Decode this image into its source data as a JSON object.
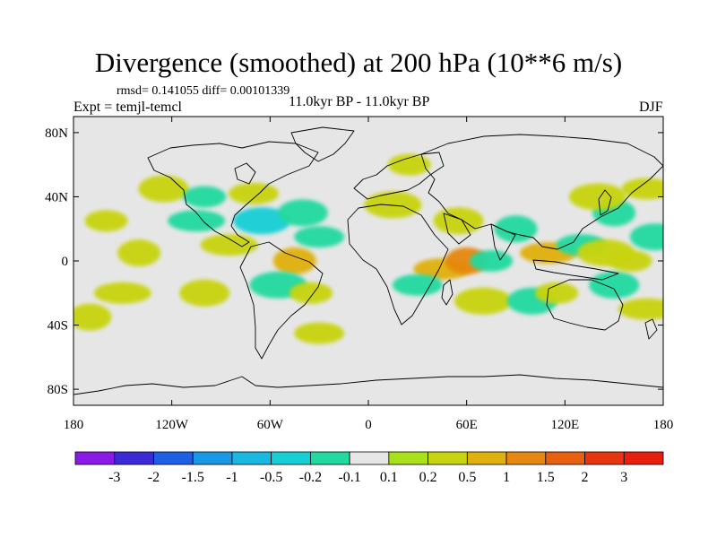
{
  "title": "Divergence (smoothed) at 200 hPa (10**6 m/s)",
  "stats": "rmsd= 0.141055 diff= 0.00101339",
  "experiment": "Expt = temjl-temcl",
  "period": "11.0kyr BP - 11.0kyr BP",
  "season": "DJF",
  "map": {
    "lat_ticks": [
      {
        "label": "80N",
        "value": 80
      },
      {
        "label": "40N",
        "value": 40
      },
      {
        "label": "0",
        "value": 0
      },
      {
        "label": "40S",
        "value": -40
      },
      {
        "label": "80S",
        "value": -80
      }
    ],
    "lon_ticks": [
      {
        "label": "180",
        "value": -180
      },
      {
        "label": "120W",
        "value": -120
      },
      {
        "label": "60W",
        "value": -60
      },
      {
        "label": "0",
        "value": 0
      },
      {
        "label": "60E",
        "value": 60
      },
      {
        "label": "120E",
        "value": 120
      },
      {
        "label": "180",
        "value": 180
      }
    ],
    "background_color": "#e6e6e6"
  },
  "colorbar": {
    "levels": [
      "-3",
      "-2",
      "-1.5",
      "-1",
      "-0.5",
      "-0.2",
      "-0.1",
      "0.1",
      "0.2",
      "0.5",
      "1",
      "1.5",
      "2",
      "3"
    ],
    "colors": [
      "#8a1ae6",
      "#3c2ad6",
      "#1f5fe6",
      "#1a98e6",
      "#18b8e0",
      "#18cfd6",
      "#22d9a0",
      "#e6e6e6",
      "#a8e01a",
      "#c8d40f",
      "#e0b00f",
      "#e6870f",
      "#e6600f",
      "#e6360f",
      "#e61f0f"
    ]
  },
  "anomalies": [
    {
      "lon": -160,
      "lat": 25,
      "value": 0.2
    },
    {
      "lon": -125,
      "lat": 45,
      "value": 0.2
    },
    {
      "lon": -105,
      "lat": 25,
      "value": -0.2
    },
    {
      "lon": -140,
      "lat": 5,
      "value": 0.2
    },
    {
      "lon": -70,
      "lat": 42,
      "value": 0.2
    },
    {
      "lon": -65,
      "lat": 25,
      "value": -0.5
    },
    {
      "lon": -100,
      "lat": 40,
      "value": -0.2
    },
    {
      "lon": -40,
      "lat": 30,
      "value": -0.2
    },
    {
      "lon": -85,
      "lat": 10,
      "value": 0.2
    },
    {
      "lon": -45,
      "lat": 0,
      "value": 0.5
    },
    {
      "lon": -30,
      "lat": 15,
      "value": -0.2
    },
    {
      "lon": -55,
      "lat": -15,
      "value": -0.2
    },
    {
      "lon": -35,
      "lat": -20,
      "value": 0.2
    },
    {
      "lon": -100,
      "lat": -20,
      "value": 0.2
    },
    {
      "lon": -150,
      "lat": -20,
      "value": 0.2
    },
    {
      "lon": -170,
      "lat": -35,
      "value": 0.2
    },
    {
      "lon": -30,
      "lat": -45,
      "value": 0.2
    },
    {
      "lon": 15,
      "lat": 35,
      "value": 0.2
    },
    {
      "lon": 25,
      "lat": 60,
      "value": 0.2
    },
    {
      "lon": 55,
      "lat": 25,
      "value": 0.2
    },
    {
      "lon": 45,
      "lat": -5,
      "value": 0.5
    },
    {
      "lon": 60,
      "lat": 0,
      "value": 1
    },
    {
      "lon": 30,
      "lat": -15,
      "value": -0.2
    },
    {
      "lon": 70,
      "lat": -25,
      "value": 0.2
    },
    {
      "lon": 75,
      "lat": 0,
      "value": -0.2
    },
    {
      "lon": 100,
      "lat": -25,
      "value": -0.2
    },
    {
      "lon": 110,
      "lat": 5,
      "value": 0.5
    },
    {
      "lon": 90,
      "lat": 20,
      "value": -0.2
    },
    {
      "lon": 130,
      "lat": 10,
      "value": -0.2
    },
    {
      "lon": 145,
      "lat": 5,
      "value": 0.2
    },
    {
      "lon": 115,
      "lat": -20,
      "value": 0.2
    },
    {
      "lon": 150,
      "lat": -15,
      "value": -0.2
    },
    {
      "lon": 170,
      "lat": -30,
      "value": 0.2
    },
    {
      "lon": 150,
      "lat": 30,
      "value": -0.2
    },
    {
      "lon": 170,
      "lat": 45,
      "value": 0.2
    },
    {
      "lon": 140,
      "lat": 40,
      "value": 0.2
    },
    {
      "lon": 160,
      "lat": 0,
      "value": 0.2
    },
    {
      "lon": 175,
      "lat": 15,
      "value": -0.2
    }
  ]
}
